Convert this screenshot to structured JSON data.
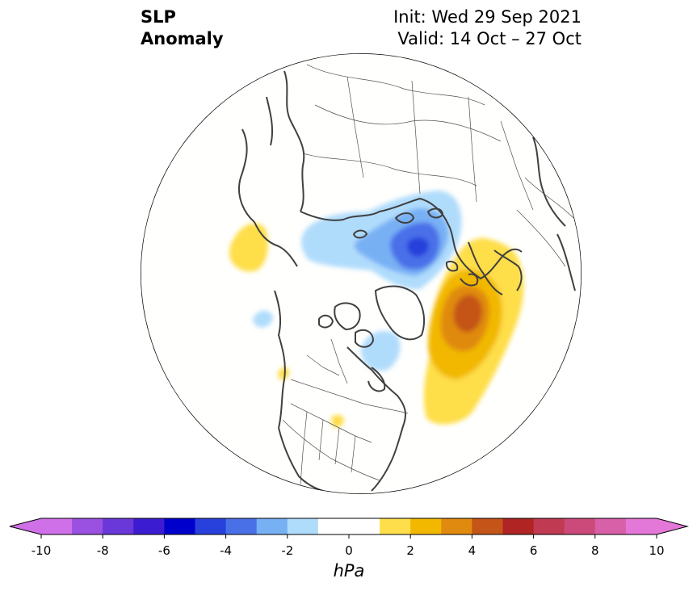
{
  "title": {
    "line1": "SLP",
    "line2": "Anomaly"
  },
  "info": {
    "init": "Init: Wed 29 Sep 2021",
    "valid": "Valid: 14 Oct – 27 Oct"
  },
  "colorbar": {
    "unit": "hPa",
    "min": -10,
    "max": 10,
    "step": 1,
    "extend": "both",
    "tick_values": [
      -10,
      -8,
      -6,
      -4,
      -2,
      0,
      2,
      4,
      6,
      8,
      10
    ],
    "tick_labels": [
      "-10",
      "-8",
      "-6",
      "-4",
      "-2",
      "0",
      "2",
      "4",
      "6",
      "8",
      "10"
    ],
    "colors": [
      "#d070e8",
      "#9a50e0",
      "#6a38d8",
      "#3c1cd0",
      "#0000cc",
      "#2840dc",
      "#4a70e8",
      "#78b0f4",
      "#b0dcfc",
      "#ffffff",
      "#ffffff",
      "#fede4a",
      "#f2b800",
      "#e08a10",
      "#c45418",
      "#b02424",
      "#c03a52",
      "#cc4a7a",
      "#d860a8",
      "#e478d8"
    ]
  },
  "map": {
    "projection": "north-polar-stereographic",
    "anomalies": [
      {
        "region": "Siberia / Laptev Sea",
        "sign": "negative",
        "max_value": -5
      },
      {
        "region": "Beaufort Sea / Canadian Arctic",
        "sign": "negative",
        "max_value": -2
      },
      {
        "region": "North Atlantic / Iceland",
        "sign": "positive",
        "max_value": 5
      },
      {
        "region": "Bering Sea / Kamchatka",
        "sign": "positive",
        "max_value": 2
      },
      {
        "region": "Gulf of Alaska",
        "sign": "negative",
        "max_value": -2
      }
    ]
  }
}
